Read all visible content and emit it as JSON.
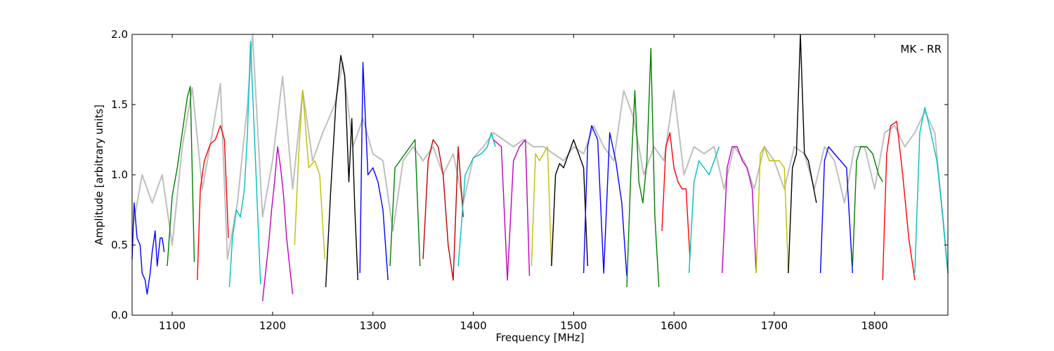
{
  "chart_data": {
    "type": "line",
    "title": "",
    "annotation": "MK - RR",
    "xlabel": "Frequency [MHz]",
    "ylabel": "Amplitude [arbitrary units]",
    "xlim": [
      1060,
      1873
    ],
    "ylim": [
      0.0,
      2.0
    ],
    "xticks": [
      1100,
      1200,
      1300,
      1400,
      1500,
      1600,
      1700,
      1800
    ],
    "xtick_labels": [
      "1100",
      "1200",
      "1300",
      "1400",
      "1500",
      "1600",
      "1700",
      "1800"
    ],
    "yticks": [
      0.0,
      0.5,
      1.0,
      1.5,
      2.0
    ],
    "ytick_labels": [
      "0.0",
      "0.5",
      "1.0",
      "1.5",
      "2.0"
    ],
    "grid": false,
    "legend": "none",
    "background_series": {
      "color": "#bfbfbf",
      "x": [
        1060,
        1070,
        1080,
        1090,
        1100,
        1110,
        1120,
        1130,
        1140,
        1148,
        1155,
        1165,
        1175,
        1180,
        1190,
        1200,
        1210,
        1220,
        1230,
        1240,
        1250,
        1262,
        1270,
        1280,
        1290,
        1300,
        1310,
        1320,
        1330,
        1340,
        1350,
        1360,
        1370,
        1380,
        1390,
        1400,
        1410,
        1420,
        1430,
        1440,
        1450,
        1460,
        1470,
        1480,
        1490,
        1500,
        1510,
        1520,
        1530,
        1540,
        1550,
        1560,
        1570,
        1580,
        1590,
        1600,
        1610,
        1620,
        1630,
        1640,
        1650,
        1660,
        1670,
        1680,
        1690,
        1700,
        1710,
        1720,
        1730,
        1740,
        1750,
        1760,
        1770,
        1780,
        1790,
        1800,
        1810,
        1820,
        1830,
        1840,
        1850,
        1860,
        1873
      ],
      "y": [
        0.6,
        1.0,
        0.8,
        1.0,
        0.5,
        1.2,
        1.62,
        0.9,
        1.3,
        1.65,
        0.4,
        0.8,
        1.5,
        2.0,
        0.7,
        1.1,
        1.7,
        0.9,
        1.6,
        1.1,
        1.3,
        1.5,
        1.8,
        1.2,
        1.4,
        1.15,
        1.1,
        0.6,
        1.1,
        1.2,
        1.1,
        1.2,
        1.0,
        1.15,
        0.8,
        1.12,
        1.2,
        1.3,
        1.25,
        1.2,
        1.25,
        1.2,
        1.2,
        1.15,
        1.1,
        1.2,
        1.15,
        1.35,
        1.2,
        1.1,
        1.6,
        1.4,
        1.0,
        1.2,
        1.1,
        1.6,
        1.0,
        1.2,
        1.15,
        1.2,
        0.9,
        1.2,
        1.1,
        0.9,
        1.2,
        1.1,
        0.9,
        1.2,
        1.15,
        0.9,
        1.2,
        1.1,
        0.8,
        1.2,
        1.2,
        0.9,
        1.3,
        1.35,
        1.2,
        1.3,
        1.45,
        1.3,
        0.3
      ]
    },
    "series": [
      {
        "color": "#0000ff",
        "x": [
          1060,
          1062,
          1065,
          1068,
          1070,
          1073,
          1075,
          1078,
          1080,
          1083,
          1085,
          1088,
          1090,
          1092
        ],
        "y": [
          0.4,
          0.8,
          0.55,
          0.5,
          0.3,
          0.25,
          0.15,
          0.3,
          0.45,
          0.6,
          0.35,
          0.55,
          0.55,
          0.45
        ]
      },
      {
        "color": "#007f00",
        "x": [
          1095,
          1100,
          1105,
          1110,
          1115,
          1118,
          1122
        ],
        "y": [
          0.35,
          0.85,
          1.05,
          1.3,
          1.55,
          1.63,
          0.38
        ]
      },
      {
        "color": "#ff0000",
        "x": [
          1125,
          1128,
          1132,
          1138,
          1143,
          1148,
          1152,
          1156
        ],
        "y": [
          0.25,
          0.9,
          1.1,
          1.22,
          1.25,
          1.35,
          1.25,
          0.55
        ]
      },
      {
        "color": "#00bfbf",
        "x": [
          1157,
          1160,
          1164,
          1168,
          1172,
          1175,
          1178,
          1183,
          1188
        ],
        "y": [
          0.2,
          0.55,
          0.75,
          0.7,
          0.9,
          1.3,
          1.95,
          1.1,
          0.22
        ]
      },
      {
        "color": "#bf00bf",
        "x": [
          1190,
          1193,
          1196,
          1199,
          1202,
          1205,
          1208,
          1211,
          1214,
          1217,
          1220
        ],
        "y": [
          0.1,
          0.3,
          0.5,
          0.75,
          0.95,
          1.2,
          1.05,
          0.85,
          0.55,
          0.35,
          0.15
        ]
      },
      {
        "color": "#bfbf00",
        "x": [
          1222,
          1226,
          1230,
          1236,
          1242,
          1247,
          1252
        ],
        "y": [
          0.5,
          1.15,
          1.6,
          1.05,
          1.1,
          1.0,
          0.4
        ]
      },
      {
        "color": "#000000",
        "x": [
          1253,
          1258,
          1263,
          1268,
          1272,
          1276,
          1279,
          1282,
          1285
        ],
        "y": [
          0.2,
          0.9,
          1.5,
          1.85,
          1.7,
          0.95,
          1.4,
          0.75,
          0.25
        ]
      },
      {
        "color": "#0000ff",
        "x": [
          1287,
          1290,
          1295,
          1300,
          1305,
          1310,
          1315
        ],
        "y": [
          0.3,
          1.8,
          1.0,
          1.05,
          0.95,
          0.75,
          0.25
        ]
      },
      {
        "color": "#007f00",
        "x": [
          1317,
          1322,
          1327,
          1332,
          1337,
          1342,
          1347
        ],
        "y": [
          0.35,
          1.05,
          1.1,
          1.15,
          1.2,
          1.25,
          0.35
        ]
      },
      {
        "color": "#bf0000",
        "x": [
          1350,
          1355,
          1360,
          1365,
          1370,
          1375,
          1380,
          1385,
          1390
        ],
        "y": [
          0.4,
          1.1,
          1.25,
          1.2,
          1.0,
          0.5,
          0.25,
          1.2,
          0.7
        ]
      },
      {
        "color": "#00bfbf",
        "x": [
          1385,
          1392,
          1400,
          1408,
          1414,
          1418,
          1422
        ],
        "y": [
          0.35,
          1.0,
          1.12,
          1.15,
          1.2,
          1.3,
          1.2
        ]
      },
      {
        "color": "#bf00bf",
        "x": [
          1420,
          1428,
          1434,
          1440,
          1446,
          1452,
          1456
        ],
        "y": [
          1.25,
          1.2,
          0.25,
          1.1,
          1.2,
          1.25,
          0.28
        ]
      },
      {
        "color": "#bfbf00",
        "x": [
          1458,
          1462,
          1466,
          1470,
          1474,
          1478
        ],
        "y": [
          0.35,
          1.15,
          1.1,
          1.15,
          1.2,
          0.35
        ]
      },
      {
        "color": "#000000",
        "x": [
          1478,
          1482,
          1486,
          1490,
          1495,
          1500,
          1505,
          1510,
          1514
        ],
        "y": [
          0.35,
          1.0,
          1.08,
          1.05,
          1.15,
          1.25,
          1.15,
          1.05,
          0.35
        ]
      },
      {
        "color": "#0000ff",
        "x": [
          1510,
          1514,
          1518,
          1524,
          1530,
          1536,
          1542,
          1548,
          1553
        ],
        "y": [
          0.3,
          1.2,
          1.35,
          1.25,
          0.3,
          1.3,
          1.1,
          0.8,
          0.28
        ]
      },
      {
        "color": "#007f00",
        "x": [
          1553,
          1557,
          1561,
          1565,
          1569,
          1573,
          1577,
          1581,
          1585
        ],
        "y": [
          0.2,
          1.0,
          1.6,
          0.95,
          0.8,
          1.1,
          1.9,
          0.7,
          0.2
        ]
      },
      {
        "color": "#ff0000",
        "x": [
          1588,
          1592,
          1596,
          1600,
          1604,
          1608,
          1612,
          1616
        ],
        "y": [
          0.6,
          1.2,
          1.3,
          1.05,
          0.95,
          0.9,
          0.9,
          0.4
        ]
      },
      {
        "color": "#00bfbf",
        "x": [
          1615,
          1620,
          1625,
          1630,
          1635,
          1640,
          1645
        ],
        "y": [
          0.3,
          0.95,
          1.1,
          1.05,
          1.0,
          1.1,
          1.2
        ]
      },
      {
        "color": "#bf00bf",
        "x": [
          1648,
          1653,
          1658,
          1663,
          1668,
          1673,
          1678,
          1682
        ],
        "y": [
          0.3,
          1.05,
          1.2,
          1.2,
          1.1,
          1.05,
          0.9,
          0.3
        ]
      },
      {
        "color": "#bfbf00",
        "x": [
          1682,
          1686,
          1690,
          1695,
          1700,
          1705,
          1710,
          1714
        ],
        "y": [
          0.3,
          1.15,
          1.2,
          1.1,
          1.1,
          1.1,
          1.05,
          0.3
        ]
      },
      {
        "color": "#000000",
        "x": [
          1714,
          1718,
          1722,
          1726,
          1730,
          1734,
          1738,
          1742
        ],
        "y": [
          0.3,
          1.05,
          1.15,
          2.0,
          1.15,
          1.1,
          0.95,
          0.8
        ]
      },
      {
        "color": "#0000ff",
        "x": [
          1746,
          1750,
          1754,
          1760,
          1766,
          1772,
          1778
        ],
        "y": [
          0.3,
          1.1,
          1.2,
          1.15,
          1.1,
          1.05,
          0.3
        ]
      },
      {
        "color": "#007f00",
        "x": [
          1778,
          1782,
          1786,
          1792,
          1798,
          1804,
          1808
        ],
        "y": [
          0.35,
          1.1,
          1.2,
          1.2,
          1.15,
          1.0,
          0.95
        ]
      },
      {
        "color": "#ff0000",
        "x": [
          1808,
          1812,
          1816,
          1822,
          1828,
          1834,
          1840
        ],
        "y": [
          0.25,
          1.15,
          1.35,
          1.38,
          1.0,
          0.55,
          0.25
        ]
      },
      {
        "color": "#00bfbf",
        "x": [
          1840,
          1845,
          1850,
          1856,
          1862,
          1868,
          1873
        ],
        "y": [
          0.3,
          1.3,
          1.48,
          1.3,
          1.1,
          0.7,
          0.3
        ]
      }
    ]
  }
}
